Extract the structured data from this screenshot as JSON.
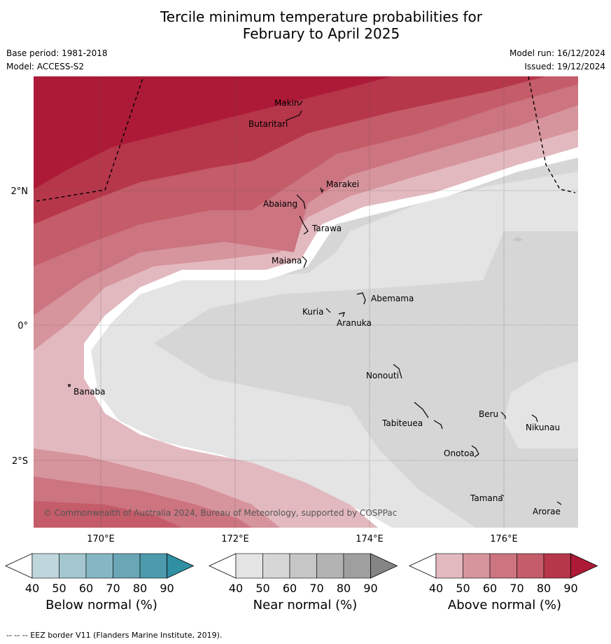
{
  "title_line1": "Tercile minimum temperature probabilities for",
  "title_line2": "February to April 2025",
  "base_period": "Base period: 1981-2018",
  "model": "Model: ACCESS-S2",
  "model_run": "Model run: 16/12/2024",
  "issued": "Issued: 19/12/2024",
  "copyright": "© Commonwealth of Australia 2024, Bureau of Meteorology, supported by COSPPac",
  "lat_labels": [
    "2°N",
    "0°",
    "2°S"
  ],
  "lon_labels": [
    "170°E",
    "172°E",
    "174°E",
    "176°E"
  ],
  "islands": [
    "Makin",
    "Butaritari",
    "Marakei",
    "Abaiang",
    "Tarawa",
    "Maiana",
    "Abemama",
    "Kuria",
    "Aranuka",
    "Banaba",
    "Nonouti",
    "Tabiteuea",
    "Beru",
    "Nikunau",
    "Onotoa",
    "Tamana",
    "Arorae"
  ],
  "colorbars": [
    {
      "title": "Below normal (%)",
      "ticks": [
        "40",
        "50",
        "60",
        "70",
        "80",
        "90"
      ],
      "colors": [
        "#ffffff",
        "#c0d6dd",
        "#a3c6cf",
        "#86b6c3",
        "#69a6b6",
        "#4c9aac",
        "#2f8fa3"
      ]
    },
    {
      "title": "Near normal (%)",
      "ticks": [
        "40",
        "50",
        "60",
        "70",
        "80",
        "90"
      ],
      "colors": [
        "#ffffff",
        "#e4e4e4",
        "#d6d6d6",
        "#c6c6c6",
        "#b3b3b3",
        "#9f9f9f",
        "#858585"
      ]
    },
    {
      "title": "Above normal (%)",
      "ticks": [
        "40",
        "50",
        "60",
        "70",
        "80",
        "90"
      ],
      "colors": [
        "#ffffff",
        "#e2b9bf",
        "#d6949c",
        "#cc7480",
        "#c45c69",
        "#b6364a",
        "#ad1a37"
      ]
    }
  ],
  "footer": "--  --  -- EEZ border V11 (Flanders Marine Institute, 2019)."
}
